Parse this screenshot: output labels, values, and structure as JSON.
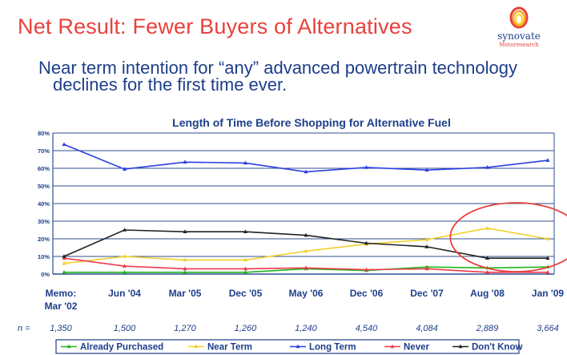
{
  "slide": {
    "title": "Net Result:  Fewer Buyers of Alternatives",
    "subtitle_line1": "Near term intention for “any” advanced powertrain technology",
    "subtitle_line2": "declines for the first time ever."
  },
  "logo": {
    "name": "synovate",
    "sub": "Motoresearch",
    "colors": [
      "#e8413c",
      "#f5a623",
      "#ffd21f"
    ]
  },
  "chart_data": {
    "type": "line",
    "title": "Length of Time Before Shopping for Alternative Fuel",
    "categories": [
      [
        "Memo:",
        "Mar '02"
      ],
      [
        "Jun '04"
      ],
      [
        "Mar '05"
      ],
      [
        "Dec '05"
      ],
      [
        "May '06"
      ],
      [
        "Dec '06"
      ],
      [
        "Dec '07"
      ],
      [
        "Aug '08"
      ],
      [
        "Jan '09"
      ]
    ],
    "n_label": "n =",
    "n_values": [
      "1,350",
      "1,500",
      "1,270",
      "1,260",
      "1,240",
      "4,540",
      "4,084",
      "2,889",
      "3,664"
    ],
    "ylim": [
      0,
      80
    ],
    "yticks": [
      0,
      10,
      20,
      30,
      40,
      50,
      60,
      70,
      80
    ],
    "ytick_labels": [
      "0%",
      "10%",
      "20%",
      "30%",
      "40%",
      "50%",
      "60%",
      "70%",
      "80%"
    ],
    "grid": "horizontal",
    "legend_position": "bottom",
    "series": [
      {
        "name": "Already Purchased",
        "color": "#22b41e",
        "values": [
          1,
          1,
          1,
          1,
          3,
          2,
          4,
          3.5,
          4
        ]
      },
      {
        "name": "Near Term",
        "color": "#f2d02a",
        "values": [
          6,
          10,
          8,
          8,
          13,
          17,
          19.5,
          26,
          20
        ]
      },
      {
        "name": "Long Term",
        "color": "#2a3fe0",
        "values": [
          73.5,
          59.5,
          63.5,
          63,
          58,
          60.5,
          59,
          60.5,
          64.5
        ]
      },
      {
        "name": "Never",
        "color": "#ee3b4e",
        "values": [
          9,
          4.5,
          3,
          3,
          3.5,
          2.5,
          3,
          1,
          1
        ]
      },
      {
        "name": "Don't Know",
        "color": "#222222",
        "values": [
          10,
          25,
          24,
          24,
          22,
          17.5,
          15.5,
          9,
          9
        ]
      }
    ],
    "annotation": {
      "shape": "ellipse",
      "color": "#e8413c",
      "around": [
        "Aug '08",
        "Jan '09"
      ]
    }
  }
}
